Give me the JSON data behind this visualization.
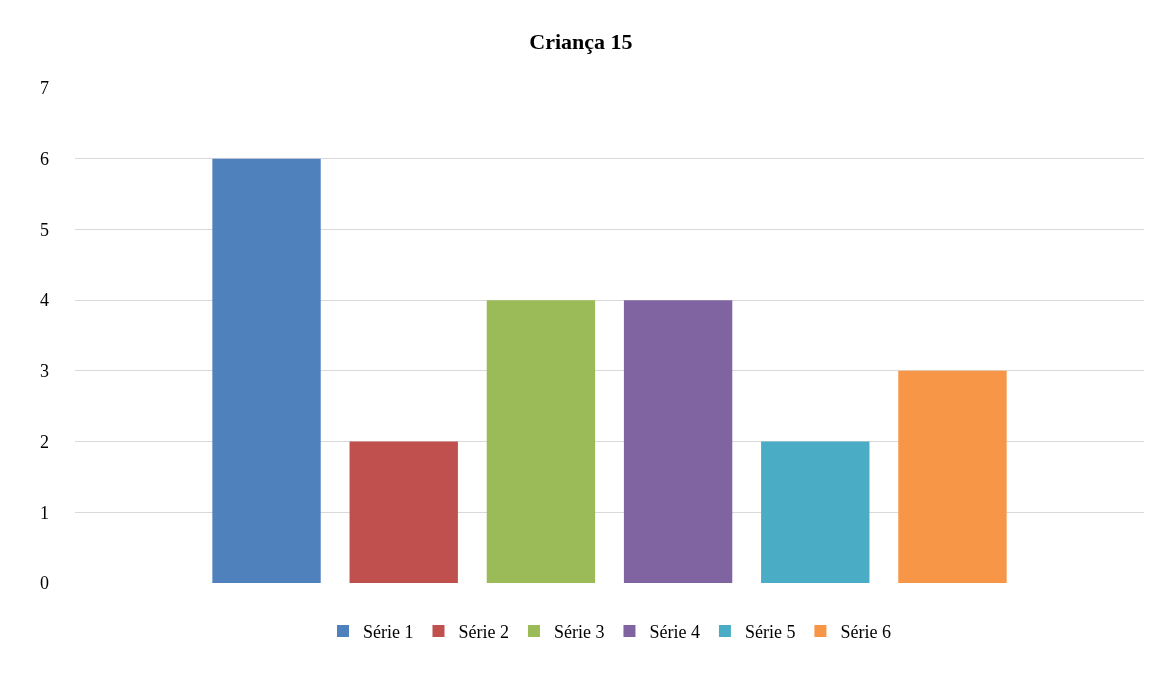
{
  "chart_data": {
    "type": "bar",
    "title": "Criança 15",
    "categories": [
      null
    ],
    "series": [
      {
        "name": "Série 1",
        "color": "#4f81bd",
        "values": [
          6
        ]
      },
      {
        "name": "Série 2",
        "color": "#c0504d",
        "values": [
          2
        ]
      },
      {
        "name": "Série 3",
        "color": "#9bbb59",
        "values": [
          4
        ]
      },
      {
        "name": "Série 4",
        "color": "#8064a2",
        "values": [
          4
        ]
      },
      {
        "name": "Série 5",
        "color": "#4bacc6",
        "values": [
          2
        ]
      },
      {
        "name": "Série 6",
        "color": "#f79646",
        "values": [
          3
        ]
      }
    ],
    "ylim": [
      0,
      7
    ],
    "yticks": [
      0,
      1,
      2,
      3,
      4,
      5,
      6,
      7
    ],
    "grid": "y",
    "legend": "bottom"
  }
}
